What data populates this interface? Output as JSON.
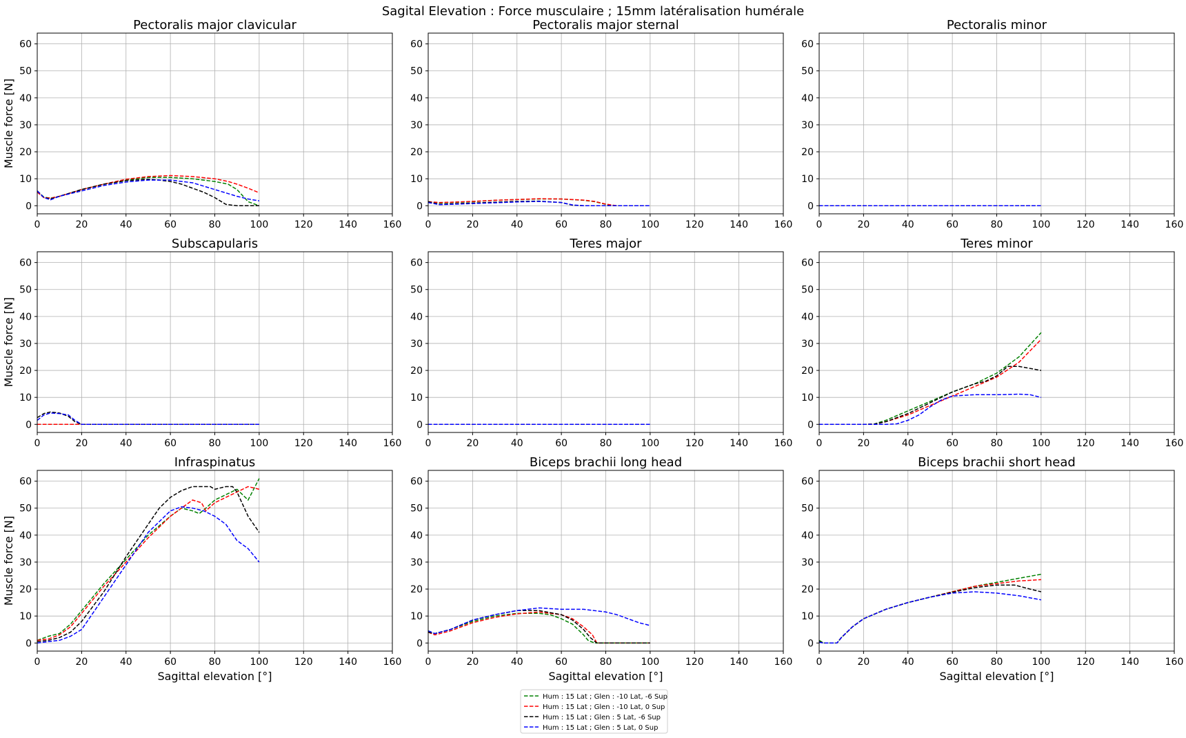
{
  "figure": {
    "title": "Sagital Elevation : Force musculaire ; 15mm latéralisation humérale"
  },
  "axes": {
    "xlabel": "Sagittal elevation [°]",
    "ylabel": "Muscle force [N]",
    "xlim": [
      0,
      160
    ],
    "ylim": [
      -3,
      64
    ],
    "xticks": [
      0,
      20,
      40,
      60,
      80,
      100,
      120,
      140,
      160
    ],
    "yticks": [
      0,
      10,
      20,
      30,
      40,
      50,
      60
    ],
    "grid": true
  },
  "legend": {
    "placement": "bottom-center",
    "entries": [
      {
        "label": "Hum : 15 Lat ; Glen : -10 Lat, -6 Sup",
        "color": "#008000"
      },
      {
        "label": "Hum : 15 Lat ; Glen : -10 Lat, 0 Sup",
        "color": "#ff0000"
      },
      {
        "label": "Hum : 15 Lat ; Glen : 5 Lat, -6 Sup",
        "color": "#000000"
      },
      {
        "label": "Hum : 15 Lat ; Glen : 5 Lat, 0 Sup",
        "color": "#0000ff"
      }
    ]
  },
  "chart_data": [
    {
      "type": "line",
      "title": "Pectoralis major clavicular",
      "series": [
        {
          "name": "Hum : 15 Lat ; Glen : -10 Lat, -6 Sup",
          "x": [
            0,
            3,
            6,
            10,
            20,
            30,
            40,
            50,
            60,
            70,
            80,
            86,
            90,
            95,
            100
          ],
          "values": [
            5.5,
            3.2,
            2.8,
            3.5,
            6,
            8,
            9.5,
            10.5,
            10.5,
            10,
            9,
            8,
            6,
            1.5,
            0
          ]
        },
        {
          "name": "Hum : 15 Lat ; Glen : -10 Lat, 0 Sup",
          "x": [
            0,
            3,
            6,
            10,
            20,
            30,
            40,
            50,
            60,
            70,
            80,
            86,
            90,
            95,
            100
          ],
          "values": [
            5,
            3,
            2.8,
            3.5,
            6,
            8,
            9.8,
            10.8,
            11.2,
            10.8,
            10,
            9,
            8,
            6.5,
            4.8
          ]
        },
        {
          "name": "Hum : 15 Lat ; Glen : 5 Lat, -6 Sup",
          "x": [
            0,
            3,
            6,
            10,
            20,
            30,
            40,
            50,
            55,
            60,
            65,
            70,
            75,
            80,
            85,
            90,
            95,
            100
          ],
          "values": [
            5.5,
            3,
            2.5,
            3.5,
            6,
            8,
            9.3,
            9.8,
            9.5,
            9,
            8,
            6.5,
            5,
            3,
            0.5,
            0,
            0,
            0
          ]
        },
        {
          "name": "Hum : 15 Lat ; Glen : 5 Lat, 0 Sup",
          "x": [
            0,
            3,
            6,
            10,
            20,
            30,
            40,
            50,
            60,
            70,
            80,
            90,
            95,
            100
          ],
          "values": [
            5.5,
            3,
            2.2,
            3.5,
            5.5,
            7.5,
            8.8,
            9.5,
            9.5,
            8.5,
            6,
            3.5,
            2.5,
            1.8
          ]
        }
      ]
    },
    {
      "type": "line",
      "title": "Pectoralis major sternal",
      "series": [
        {
          "name": "Hum : 15 Lat ; Glen : -10 Lat, -6 Sup",
          "x": [
            0,
            5,
            10,
            20,
            30,
            40,
            50,
            60,
            70,
            75,
            80,
            85,
            90,
            100
          ],
          "values": [
            1.5,
            1,
            1.2,
            1.5,
            2,
            2.3,
            2.5,
            2.5,
            2,
            1.5,
            0.5,
            0,
            0,
            0
          ]
        },
        {
          "name": "Hum : 15 Lat ; Glen : -10 Lat, 0 Sup",
          "x": [
            0,
            5,
            10,
            20,
            30,
            40,
            50,
            60,
            70,
            75,
            80,
            85,
            90,
            100
          ],
          "values": [
            1.5,
            1.2,
            1.3,
            1.6,
            2,
            2.3,
            2.6,
            2.5,
            2.1,
            1.6,
            0.6,
            0,
            0,
            0
          ]
        },
        {
          "name": "Hum : 15 Lat ; Glen : 5 Lat, -6 Sup",
          "x": [
            0,
            5,
            10,
            20,
            30,
            40,
            50,
            60,
            65,
            70,
            80,
            90,
            100
          ],
          "values": [
            1.5,
            0.5,
            0.7,
            1,
            1.3,
            1.6,
            1.7,
            1.2,
            0.2,
            0,
            0,
            0,
            0
          ]
        },
        {
          "name": "Hum : 15 Lat ; Glen : 5 Lat, 0 Sup",
          "x": [
            0,
            5,
            10,
            20,
            30,
            40,
            50,
            60,
            65,
            70,
            80,
            90,
            100
          ],
          "values": [
            1.2,
            0.4,
            0.5,
            0.8,
            1.1,
            1.4,
            1.6,
            1.2,
            0.3,
            0,
            0,
            0,
            0
          ]
        }
      ]
    },
    {
      "type": "line",
      "title": "Pectoralis minor",
      "series": [
        {
          "name": "Hum : 15 Lat ; Glen : -10 Lat, -6 Sup",
          "x": [
            0,
            100
          ],
          "values": [
            0,
            0
          ]
        },
        {
          "name": "Hum : 15 Lat ; Glen : -10 Lat, 0 Sup",
          "x": [
            0,
            100
          ],
          "values": [
            0,
            0
          ]
        },
        {
          "name": "Hum : 15 Lat ; Glen : 5 Lat, -6 Sup",
          "x": [
            0,
            100
          ],
          "values": [
            0,
            0
          ]
        },
        {
          "name": "Hum : 15 Lat ; Glen : 5 Lat, 0 Sup",
          "x": [
            0,
            100
          ],
          "values": [
            0,
            0
          ]
        }
      ]
    },
    {
      "type": "line",
      "title": "Subscapularis",
      "series": [
        {
          "name": "Hum : 15 Lat ; Glen : -10 Lat, -6 Sup",
          "x": [
            0,
            100
          ],
          "values": [
            0,
            0
          ]
        },
        {
          "name": "Hum : 15 Lat ; Glen : -10 Lat, 0 Sup",
          "x": [
            0,
            100
          ],
          "values": [
            0,
            0
          ]
        },
        {
          "name": "Hum : 15 Lat ; Glen : 5 Lat, -6 Sup",
          "x": [
            0,
            3,
            6,
            10,
            14,
            17,
            20,
            30,
            50,
            80,
            100
          ],
          "values": [
            2.5,
            4,
            4.6,
            4.2,
            3,
            1,
            0,
            0,
            0,
            0,
            0
          ]
        },
        {
          "name": "Hum : 15 Lat ; Glen : 5 Lat, 0 Sup",
          "x": [
            0,
            3,
            6,
            10,
            14,
            17,
            20,
            30,
            50,
            80,
            100
          ],
          "values": [
            1.5,
            3.5,
            4.2,
            4,
            3.5,
            1.5,
            0,
            0,
            0,
            0,
            0
          ]
        }
      ]
    },
    {
      "type": "line",
      "title": "Teres major",
      "series": [
        {
          "name": "Hum : 15 Lat ; Glen : -10 Lat, -6 Sup",
          "x": [
            0,
            100
          ],
          "values": [
            0,
            0
          ]
        },
        {
          "name": "Hum : 15 Lat ; Glen : -10 Lat, 0 Sup",
          "x": [
            0,
            100
          ],
          "values": [
            0,
            0
          ]
        },
        {
          "name": "Hum : 15 Lat ; Glen : 5 Lat, -6 Sup",
          "x": [
            0,
            100
          ],
          "values": [
            0,
            0
          ]
        },
        {
          "name": "Hum : 15 Lat ; Glen : 5 Lat, 0 Sup",
          "x": [
            0,
            100
          ],
          "values": [
            0,
            0
          ]
        }
      ]
    },
    {
      "type": "line",
      "title": "Teres minor",
      "series": [
        {
          "name": "Hum : 15 Lat ; Glen : -10 Lat, -6 Sup",
          "x": [
            0,
            20,
            25,
            30,
            40,
            50,
            60,
            70,
            80,
            90,
            100
          ],
          "values": [
            0,
            0,
            0.2,
            1.5,
            5,
            8.5,
            12,
            15,
            19,
            25,
            34
          ]
        },
        {
          "name": "Hum : 15 Lat ; Glen : -10 Lat, 0 Sup",
          "x": [
            0,
            20,
            25,
            30,
            40,
            50,
            60,
            70,
            80,
            90,
            100
          ],
          "values": [
            0,
            0,
            0.1,
            1,
            3.5,
            7,
            10.5,
            14,
            17.5,
            23,
            31.5
          ]
        },
        {
          "name": "Hum : 15 Lat ; Glen : 5 Lat, -6 Sup",
          "x": [
            0,
            20,
            25,
            30,
            40,
            50,
            60,
            70,
            75,
            80,
            85,
            90,
            100
          ],
          "values": [
            0,
            0,
            0.1,
            1,
            4,
            8,
            12,
            15,
            16,
            18,
            21.5,
            21.5,
            20
          ]
        },
        {
          "name": "Hum : 15 Lat ; Glen : 5 Lat, 0 Sup",
          "x": [
            0,
            20,
            30,
            35,
            40,
            45,
            50,
            55,
            60,
            70,
            80,
            90,
            95,
            100
          ],
          "values": [
            0,
            0,
            0,
            0.2,
            1.5,
            3.5,
            6.5,
            9,
            10.5,
            11,
            11,
            11.2,
            11,
            10
          ]
        }
      ]
    },
    {
      "type": "line",
      "title": "Infraspinatus",
      "series": [
        {
          "name": "Hum : 15 Lat ; Glen : -10 Lat, -6 Sup",
          "x": [
            0,
            5,
            10,
            15,
            20,
            30,
            40,
            50,
            60,
            65,
            70,
            73,
            76,
            80,
            85,
            90,
            95,
            100
          ],
          "values": [
            1,
            2.5,
            3.5,
            7,
            12,
            22,
            31,
            40,
            47,
            50,
            49,
            48,
            50,
            53,
            55,
            57,
            53,
            61
          ]
        },
        {
          "name": "Hum : 15 Lat ; Glen : -10 Lat, 0 Sup",
          "x": [
            0,
            5,
            10,
            15,
            20,
            30,
            40,
            50,
            60,
            65,
            70,
            74,
            76,
            80,
            85,
            90,
            95,
            100
          ],
          "values": [
            1,
            1.5,
            3,
            6,
            11,
            21,
            30,
            39,
            47,
            50,
            53,
            52,
            49,
            52,
            54,
            56,
            58,
            57
          ]
        },
        {
          "name": "Hum : 15 Lat ; Glen : 5 Lat, -6 Sup",
          "x": [
            0,
            5,
            10,
            15,
            20,
            30,
            40,
            50,
            55,
            60,
            65,
            70,
            75,
            78,
            80,
            85,
            88,
            90,
            95,
            100
          ],
          "values": [
            0.5,
            1,
            2,
            4,
            8,
            19,
            32,
            44,
            50,
            54,
            56.5,
            58,
            58,
            58,
            57,
            58,
            58,
            56,
            47,
            41
          ]
        },
        {
          "name": "Hum : 15 Lat ; Glen : 5 Lat, 0 Sup",
          "x": [
            0,
            5,
            10,
            15,
            20,
            25,
            30,
            40,
            50,
            60,
            65,
            70,
            75,
            80,
            85,
            90,
            95,
            100
          ],
          "values": [
            0,
            0.5,
            1,
            2.5,
            5,
            11,
            17,
            29,
            41,
            49,
            50.5,
            50,
            49,
            47,
            44,
            38,
            35,
            30
          ]
        }
      ]
    },
    {
      "type": "line",
      "title": "Biceps brachii long head",
      "series": [
        {
          "name": "Hum : 15 Lat ; Glen : -10 Lat, -6 Sup",
          "x": [
            0,
            3,
            10,
            20,
            30,
            40,
            50,
            55,
            60,
            65,
            70,
            72,
            75,
            80,
            90,
            100
          ],
          "values": [
            4.5,
            3.5,
            5,
            8,
            10,
            11,
            11,
            10.5,
            9,
            7,
            3,
            1,
            0,
            0,
            0,
            0
          ]
        },
        {
          "name": "Hum : 15 Lat ; Glen : -10 Lat, 0 Sup",
          "x": [
            0,
            3,
            10,
            20,
            30,
            40,
            50,
            60,
            65,
            70,
            74,
            76,
            80,
            90,
            100
          ],
          "values": [
            4,
            3,
            4.5,
            7.5,
            9.5,
            10.8,
            11.5,
            10.5,
            9,
            6,
            3,
            0,
            0,
            0,
            0
          ]
        },
        {
          "name": "Hum : 15 Lat ; Glen : 5 Lat, -6 Sup",
          "x": [
            0,
            3,
            10,
            20,
            30,
            40,
            50,
            60,
            65,
            70,
            73,
            76,
            80,
            90,
            100
          ],
          "values": [
            4,
            3.5,
            5,
            8.5,
            10.5,
            12,
            12,
            10.5,
            8.5,
            5,
            2,
            0,
            0,
            0,
            0
          ]
        },
        {
          "name": "Hum : 15 Lat ; Glen : 5 Lat, 0 Sup",
          "x": [
            0,
            3,
            10,
            20,
            30,
            40,
            50,
            60,
            70,
            80,
            85,
            90,
            95,
            100
          ],
          "values": [
            4.5,
            3.5,
            5,
            8.5,
            10.5,
            12,
            13,
            12.5,
            12.5,
            11.5,
            10.5,
            9,
            7.5,
            6.5
          ]
        }
      ]
    },
    {
      "type": "line",
      "title": "Biceps brachii short head",
      "series": [
        {
          "name": "Hum : 15 Lat ; Glen : -10 Lat, -6 Sup",
          "x": [
            0,
            2,
            8,
            10,
            15,
            20,
            30,
            40,
            50,
            60,
            70,
            80,
            90,
            100
          ],
          "values": [
            1,
            0,
            0,
            2,
            6,
            9,
            12.5,
            15,
            17,
            19,
            21,
            22.5,
            24,
            25.5
          ]
        },
        {
          "name": "Hum : 15 Lat ; Glen : -10 Lat, 0 Sup",
          "x": [
            0,
            2,
            8,
            10,
            15,
            20,
            30,
            40,
            50,
            60,
            70,
            80,
            90,
            100
          ],
          "values": [
            0.5,
            0,
            0,
            2,
            6,
            9,
            12.5,
            15,
            17,
            19,
            21,
            22,
            23,
            23.5
          ]
        },
        {
          "name": "Hum : 15 Lat ; Glen : 5 Lat, -6 Sup",
          "x": [
            0,
            2,
            8,
            10,
            15,
            20,
            30,
            40,
            50,
            60,
            70,
            80,
            88,
            95,
            100
          ],
          "values": [
            0.5,
            0,
            0,
            2,
            6,
            9,
            12.5,
            15,
            17,
            18.8,
            20.5,
            21.5,
            21.5,
            20,
            19
          ]
        },
        {
          "name": "Hum : 15 Lat ; Glen : 5 Lat, 0 Sup",
          "x": [
            0,
            2,
            8,
            10,
            15,
            20,
            30,
            40,
            50,
            60,
            70,
            80,
            90,
            100
          ],
          "values": [
            0.3,
            0,
            0,
            2,
            6,
            9,
            12.5,
            15,
            17,
            18.5,
            19,
            18.5,
            17.5,
            16
          ]
        }
      ]
    }
  ]
}
